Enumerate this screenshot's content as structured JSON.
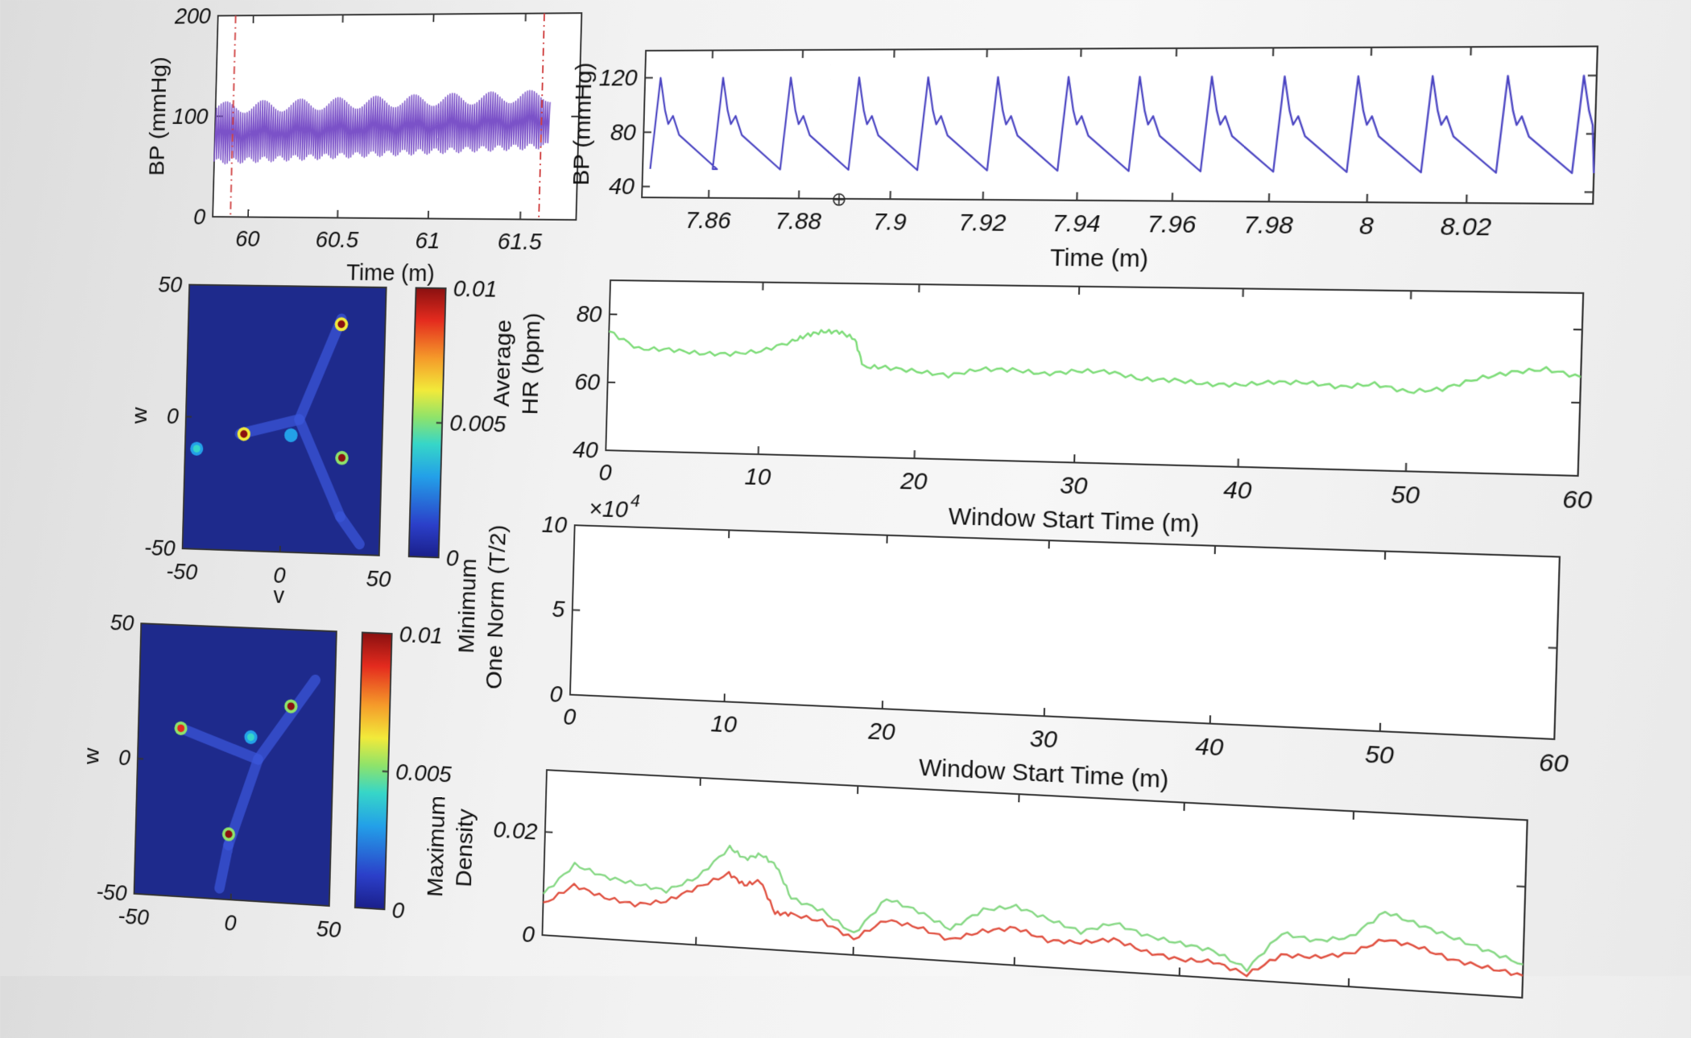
{
  "chart_data": [
    {
      "id": "bp_overview",
      "type": "line",
      "xlabel": "Time (m)",
      "ylabel": "BP (mmHg)",
      "xlim": [
        59.8,
        61.8
      ],
      "ylim": [
        0,
        200
      ],
      "xticks": [
        60,
        60.5,
        61,
        61.5
      ],
      "xtick_labels": [
        "60",
        "60.5",
        "61",
        "61.5"
      ],
      "yticks": [
        0,
        100,
        200
      ],
      "ytick_labels": [
        "0",
        "100",
        "200"
      ],
      "color": "#7b52c8",
      "markers": [
        59.9,
        61.6
      ],
      "marker_color": "#d04040",
      "signal": {
        "beats": 150,
        "t_start": 59.8,
        "t_end": 61.65,
        "low_start": 55,
        "low_end": 72,
        "high_start": 108,
        "high_end": 120
      }
    },
    {
      "id": "bp_zoom",
      "type": "line",
      "xlabel": "Time (m)",
      "ylabel": "BP (mmHg)",
      "xlim": [
        7.845,
        8.045
      ],
      "ylim": [
        32,
        140
      ],
      "xticks": [
        7.86,
        7.88,
        7.9,
        7.92,
        7.94,
        7.96,
        7.98,
        8,
        8.02
      ],
      "xtick_labels": [
        "7.86",
        "7.88",
        "7.9",
        "7.92",
        "7.94",
        "7.96",
        "7.98",
        "8",
        "8.02"
      ],
      "yticks": [
        40,
        80,
        120
      ],
      "ytick_labels": [
        "40",
        "80",
        "120"
      ],
      "color": "#4a44c2",
      "signal": {
        "peaks": [
          7.8485,
          7.8625,
          7.8775,
          7.8925,
          7.9075,
          7.9225,
          7.9375,
          7.9525,
          7.9675,
          7.9825,
          7.9975,
          8.0125,
          8.0275,
          8.0425
        ],
        "peak_value": 120,
        "notch_value": 92,
        "trough_value": 53
      }
    },
    {
      "id": "avg_hr",
      "type": "line",
      "xlabel": "Window Start Time (m)",
      "ylabel": [
        "Average",
        "HR (bpm)"
      ],
      "xlim": [
        0,
        60
      ],
      "ylim": [
        40,
        90
      ],
      "xticks": [
        0,
        10,
        20,
        30,
        40,
        50,
        60
      ],
      "xtick_labels": [
        "0",
        "10",
        "20",
        "30",
        "40",
        "50",
        "60"
      ],
      "yticks": [
        40,
        60,
        80
      ],
      "ytick_labels": [
        "40",
        "60",
        "80"
      ],
      "series": [
        {
          "color": "#7ddc78",
          "x": [
            0,
            2,
            4,
            6,
            8,
            10,
            12,
            13,
            14,
            15,
            16,
            16.6,
            18,
            20,
            22,
            24,
            26,
            28,
            30,
            32,
            34,
            36,
            38,
            40,
            42,
            44,
            46,
            48,
            50,
            52,
            54,
            56,
            58,
            60
          ],
          "y": [
            75,
            70,
            70,
            69,
            69,
            70,
            73,
            75,
            76,
            76,
            74,
            66,
            66,
            65,
            64,
            66,
            66,
            65,
            66,
            66,
            64,
            64,
            63,
            63,
            64,
            64,
            63,
            64,
            62,
            63,
            66,
            68,
            69,
            67
          ]
        }
      ]
    },
    {
      "id": "min_one_norm",
      "type": "line",
      "xlabel": "Window Start Time (m)",
      "ylabel": [
        "Minimum",
        "One Norm (T/2)"
      ],
      "xlim": [
        0,
        60
      ],
      "ylim": [
        0,
        10
      ],
      "y_multiplier": "×10",
      "y_multiplier_exp": "4",
      "xticks": [
        0,
        10,
        20,
        30,
        40,
        50,
        60
      ],
      "xtick_labels": [
        "0",
        "10",
        "20",
        "30",
        "40",
        "50",
        "60"
      ],
      "yticks": [
        0,
        5,
        10
      ],
      "ytick_labels": [
        "0",
        "5",
        "10"
      ],
      "series": []
    },
    {
      "id": "max_density",
      "type": "line",
      "xlabel": "",
      "ylabel": [
        "Maximum",
        "Density"
      ],
      "xlim": [
        0,
        60
      ],
      "ylim": [
        0,
        0.032
      ],
      "xticks": [
        0,
        10,
        20,
        30,
        40,
        50,
        60
      ],
      "yticks": [
        0,
        0.02
      ],
      "ytick_labels": [
        "0",
        "0.02"
      ],
      "series": [
        {
          "color": "#86d884",
          "x": [
            0,
            2,
            4,
            6,
            8,
            10,
            12,
            13,
            14,
            15,
            16,
            18,
            20,
            22,
            24,
            26,
            28,
            30,
            32,
            34,
            36,
            38,
            40,
            42,
            44,
            46,
            48,
            50,
            52,
            54,
            56,
            58,
            60
          ],
          "y": [
            0.008,
            0.014,
            0.012,
            0.011,
            0.01,
            0.013,
            0.019,
            0.017,
            0.018,
            0.016,
            0.01,
            0.008,
            0.004,
            0.011,
            0.009,
            0.006,
            0.01,
            0.011,
            0.009,
            0.007,
            0.009,
            0.007,
            0.006,
            0.005,
            0.002,
            0.009,
            0.008,
            0.009,
            0.014,
            0.012,
            0.01,
            0.008,
            0.006
          ]
        },
        {
          "color": "#e05040",
          "x": [
            0,
            2,
            4,
            6,
            8,
            10,
            12,
            13,
            14,
            15,
            16,
            18,
            20,
            22,
            24,
            26,
            28,
            30,
            32,
            34,
            36,
            38,
            40,
            42,
            44,
            46,
            48,
            50,
            52,
            54,
            56,
            58,
            60
          ],
          "y": [
            0.006,
            0.01,
            0.008,
            0.007,
            0.008,
            0.011,
            0.014,
            0.012,
            0.013,
            0.007,
            0.007,
            0.006,
            0.003,
            0.007,
            0.006,
            0.004,
            0.006,
            0.007,
            0.005,
            0.005,
            0.006,
            0.004,
            0.003,
            0.003,
            0.001,
            0.005,
            0.005,
            0.006,
            0.009,
            0.008,
            0.006,
            0.005,
            0.004
          ]
        }
      ]
    },
    {
      "id": "density_map_1",
      "type": "heatmap",
      "xlabel": "v",
      "ylabel": "w",
      "xlim": [
        -50,
        50
      ],
      "ylim": [
        -50,
        50
      ],
      "xticks": [
        -50,
        0,
        50
      ],
      "xtick_labels": [
        "-50",
        "0",
        "50"
      ],
      "yticks": [
        -50,
        0,
        50
      ],
      "ytick_labels": [
        "-50",
        "0",
        "50"
      ],
      "clim": [
        0,
        0.01
      ],
      "colorbar_ticks": [
        0,
        0.005,
        0.01
      ],
      "colorbar_tick_labels": [
        "0",
        "0.005",
        "0.01"
      ],
      "background_color": "#1e2a8c",
      "branch_color": "#3a55d8",
      "branches": [
        {
          "from": [
            8,
            0
          ],
          "to": [
            28,
            38
          ]
        },
        {
          "from": [
            8,
            0
          ],
          "to": [
            -22,
            -6
          ]
        },
        {
          "from": [
            8,
            0
          ],
          "to": [
            30,
            -36
          ]
        },
        {
          "from": [
            30,
            -36
          ],
          "to": [
            40,
            -46
          ]
        }
      ],
      "hotspots": [
        {
          "x": 28,
          "y": 36,
          "value": 0.01
        },
        {
          "x": -20,
          "y": -6,
          "value": 0.01
        },
        {
          "x": 30,
          "y": -14,
          "value": 0.009
        },
        {
          "x": -44,
          "y": -12,
          "value": 0.004
        },
        {
          "x": 4,
          "y": -6,
          "value": 0.003
        }
      ]
    },
    {
      "id": "density_map_2",
      "type": "heatmap",
      "ylabel": "w",
      "xlim": [
        -50,
        50
      ],
      "ylim": [
        -50,
        50
      ],
      "xticks": [
        -50,
        0,
        50
      ],
      "xtick_labels": [
        "-50",
        "0",
        "50"
      ],
      "yticks": [
        -50,
        0,
        50
      ],
      "ytick_labels": [
        "-50",
        "0",
        "50"
      ],
      "clim": [
        0,
        0.01
      ],
      "colorbar_ticks": [
        0,
        0.005,
        0.01
      ],
      "colorbar_tick_labels": [
        "0",
        "0.005",
        "0.01"
      ],
      "background_color": "#1e2a8c",
      "branch_color": "#3a55d8",
      "branches": [
        {
          "from": [
            12,
            2
          ],
          "to": [
            40,
            32
          ]
        },
        {
          "from": [
            12,
            2
          ],
          "to": [
            -28,
            12
          ]
        },
        {
          "from": [
            12,
            2
          ],
          "to": [
            -2,
            -30
          ]
        },
        {
          "from": [
            -2,
            -30
          ],
          "to": [
            -6,
            -46
          ]
        }
      ],
      "hotspots": [
        {
          "x": 28,
          "y": 22,
          "value": 0.009
        },
        {
          "x": -28,
          "y": 12,
          "value": 0.008
        },
        {
          "x": -2,
          "y": -26,
          "value": 0.009
        },
        {
          "x": 8,
          "y": 10,
          "value": 0.004
        }
      ]
    }
  ]
}
